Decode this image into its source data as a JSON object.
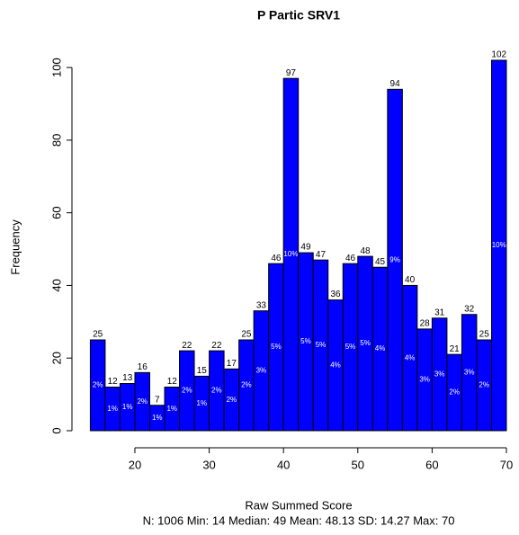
{
  "chart_data": {
    "type": "histogram",
    "title": "P Partic SRV1",
    "x_label": "Raw Summed Score",
    "y_label": "Frequency",
    "footer": "N: 1006 Min: 14 Median: 49 Mean: 48.13 SD: 14.27 Max: 70",
    "bins": [
      14,
      16,
      18,
      20,
      22,
      24,
      26,
      28,
      30,
      32,
      34,
      36,
      38,
      40,
      42,
      44,
      46,
      48,
      50,
      52,
      54,
      56,
      58,
      60,
      62,
      64,
      66,
      68,
      70
    ],
    "values": [
      25,
      12,
      13,
      16,
      7,
      12,
      22,
      15,
      22,
      17,
      25,
      33,
      46,
      97,
      49,
      47,
      36,
      46,
      48,
      45,
      94,
      40,
      28,
      31,
      21,
      32,
      25,
      102
    ],
    "percent_labels": [
      "2%",
      "1%",
      "1%",
      "2%",
      "1%",
      "1%",
      "2%",
      "1%",
      "2%",
      "2%",
      "2%",
      "3%",
      "5%",
      "10%",
      "5%",
      "5%",
      "4%",
      "5%",
      "5%",
      "4%",
      "9%",
      "4%",
      "3%",
      "3%",
      "2%",
      "3%",
      "2%",
      "10%"
    ],
    "color": "#0000ff",
    "xlim": [
      14,
      70
    ],
    "xticks": [
      20,
      30,
      40,
      50,
      60,
      70
    ],
    "ylim": [
      0,
      102
    ],
    "yticks": [
      0,
      20,
      40,
      60,
      80,
      100
    ]
  }
}
